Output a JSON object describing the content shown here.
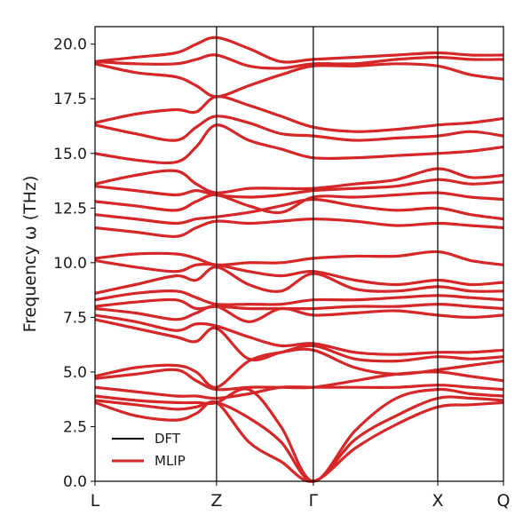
{
  "chart_data": {
    "type": "line",
    "title": "",
    "xlabel": "",
    "ylabel": "Frequency ω (THz)",
    "ylim": [
      0,
      20.8
    ],
    "grid": false,
    "legend_position": "bottom-left",
    "x_kpoints": [
      {
        "label": "L",
        "x": 0.0
      },
      {
        "label": "Z",
        "x": 0.2975
      },
      {
        "label": "Γ",
        "x": 0.5344
      },
      {
        "label": "X",
        "x": 0.8391
      },
      {
        "label": "Q",
        "x": 1.0
      }
    ],
    "yticks": [
      "0.0",
      "2.5",
      "5.0",
      "7.5",
      "10.0",
      "12.5",
      "15.0",
      "17.5",
      "20.0"
    ],
    "ytick_values": [
      0,
      2.5,
      5,
      7.5,
      10,
      12.5,
      15,
      17.5,
      20
    ],
    "series": [
      {
        "name": "DFT",
        "color": "#000000",
        "style": "dashed"
      },
      {
        "name": "MLIP",
        "color": "#d62728",
        "style": "solid"
      }
    ],
    "bands": [
      [
        3.6,
        3.0,
        2.8,
        3.1,
        3.6,
        1.8,
        0.9,
        0.0,
        1.5,
        2.6,
        3.4,
        3.5,
        3.6
      ],
      [
        3.7,
        3.5,
        3.3,
        3.4,
        3.6,
        2.9,
        1.8,
        0.0,
        1.9,
        3.0,
        3.8,
        3.8,
        3.7
      ],
      [
        3.9,
        3.7,
        3.6,
        3.6,
        3.6,
        4.2,
        2.5,
        0.0,
        2.3,
        3.8,
        4.2,
        4.0,
        3.9
      ],
      [
        4.3,
        4.1,
        3.9,
        3.9,
        3.8,
        4.0,
        4.3,
        4.3,
        4.3,
        4.3,
        4.4,
        4.3,
        4.2
      ],
      [
        4.7,
        4.9,
        5.1,
        4.6,
        4.2,
        4.3,
        4.3,
        4.3,
        4.6,
        4.9,
        5.0,
        4.8,
        4.6
      ],
      [
        4.8,
        5.2,
        5.3,
        5.0,
        4.3,
        5.5,
        5.9,
        6.0,
        5.2,
        4.9,
        5.1,
        5.3,
        5.5
      ],
      [
        7.4,
        7.0,
        6.6,
        6.4,
        7.0,
        5.6,
        5.9,
        6.2,
        5.6,
        5.5,
        5.7,
        5.6,
        5.7
      ],
      [
        7.6,
        7.3,
        6.9,
        7.2,
        7.1,
        6.6,
        6.2,
        6.3,
        5.9,
        5.8,
        5.9,
        5.9,
        6.0
      ],
      [
        7.9,
        7.7,
        7.4,
        7.7,
        8.0,
        7.3,
        7.9,
        7.6,
        7.7,
        7.8,
        7.6,
        7.5,
        7.6
      ],
      [
        8.0,
        8.2,
        8.3,
        7.9,
        8.0,
        7.9,
        7.9,
        7.9,
        8.0,
        8.0,
        8.1,
        8.0,
        7.9
      ],
      [
        8.3,
        8.6,
        8.7,
        8.4,
        8.1,
        8.1,
        8.1,
        8.3,
        8.3,
        8.4,
        8.5,
        8.4,
        8.3
      ],
      [
        8.6,
        9.0,
        9.4,
        9.2,
        9.8,
        9.0,
        8.7,
        9.5,
        8.8,
        8.7,
        8.9,
        8.7,
        8.7
      ],
      [
        10.1,
        9.8,
        9.6,
        9.9,
        9.9,
        9.6,
        9.4,
        9.6,
        9.2,
        9.0,
        9.2,
        9.0,
        9.1
      ],
      [
        10.2,
        10.4,
        10.4,
        10.2,
        9.9,
        10.0,
        10.0,
        10.2,
        10.3,
        10.3,
        10.5,
        10.1,
        9.9
      ],
      [
        11.6,
        11.4,
        11.2,
        11.6,
        11.9,
        11.8,
        11.9,
        12.0,
        11.9,
        11.7,
        11.8,
        11.7,
        11.6
      ],
      [
        12.2,
        12.0,
        11.8,
        12.0,
        12.1,
        12.3,
        12.6,
        12.9,
        12.6,
        12.4,
        12.5,
        12.2,
        12.0
      ],
      [
        12.8,
        12.6,
        12.4,
        12.8,
        13.1,
        12.6,
        12.3,
        13.0,
        13.0,
        13.1,
        13.2,
        13.0,
        12.9
      ],
      [
        13.5,
        13.3,
        13.1,
        13.3,
        13.1,
        13.0,
        13.1,
        13.3,
        13.4,
        13.5,
        13.8,
        13.6,
        13.7
      ],
      [
        13.6,
        14.0,
        14.2,
        13.6,
        13.2,
        13.4,
        13.4,
        13.4,
        13.6,
        13.8,
        14.3,
        13.9,
        14.0
      ],
      [
        15.0,
        14.7,
        14.6,
        15.3,
        16.3,
        15.6,
        15.2,
        14.8,
        14.8,
        14.9,
        15.0,
        15.1,
        15.3
      ],
      [
        16.3,
        15.9,
        15.6,
        16.2,
        16.7,
        16.4,
        15.9,
        15.8,
        15.6,
        15.7,
        15.8,
        16.0,
        15.8
      ],
      [
        16.4,
        16.8,
        17.0,
        16.9,
        17.6,
        17.2,
        16.7,
        16.2,
        16.0,
        16.1,
        16.3,
        16.4,
        16.6
      ],
      [
        19.1,
        18.7,
        18.5,
        18.1,
        17.6,
        18.1,
        18.6,
        19.0,
        19.0,
        19.1,
        19.0,
        18.6,
        18.4
      ],
      [
        19.2,
        19.1,
        19.1,
        19.3,
        19.5,
        19.0,
        18.9,
        19.1,
        19.1,
        19.3,
        19.4,
        19.3,
        19.3
      ],
      [
        19.2,
        19.4,
        19.6,
        20.0,
        20.3,
        19.8,
        19.2,
        19.3,
        19.4,
        19.5,
        19.6,
        19.5,
        19.5
      ]
    ],
    "band_x": [
      0.0,
      0.0991,
      0.1983,
      0.2479,
      0.2975,
      0.3765,
      0.4554,
      0.5344,
      0.636,
      0.7375,
      0.8391,
      0.9196,
      1.0
    ]
  }
}
